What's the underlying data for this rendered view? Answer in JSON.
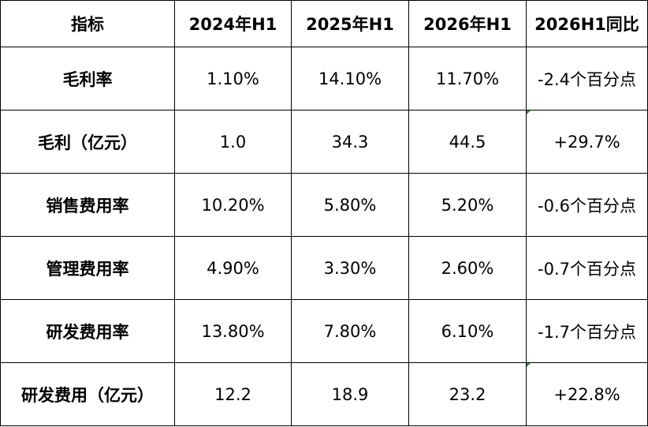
{
  "table": {
    "header": [
      "指标",
      "2024年H1",
      "2025年H1",
      "2026年H1",
      "2026H1同比"
    ],
    "rows": [
      [
        "毛利率",
        "1.10%",
        "14.10%",
        "11.70%",
        "-2.4个百分点"
      ],
      [
        "毛利（亿元）",
        "1.0",
        "34.3",
        "44.5",
        "+29.7%"
      ],
      [
        "销售费用率",
        "10.20%",
        "5.80%",
        "5.20%",
        "-0.6个百分点"
      ],
      [
        "管理费用率",
        "4.90%",
        "3.30%",
        "2.60%",
        "-0.7个百分点"
      ],
      [
        "研发费用率",
        "13.80%",
        "7.80%",
        "6.10%",
        "-1.7个百分点"
      ],
      [
        "研发费用（亿元）",
        "12.2",
        "18.9",
        "23.2",
        "+22.8%"
      ]
    ]
  }
}
